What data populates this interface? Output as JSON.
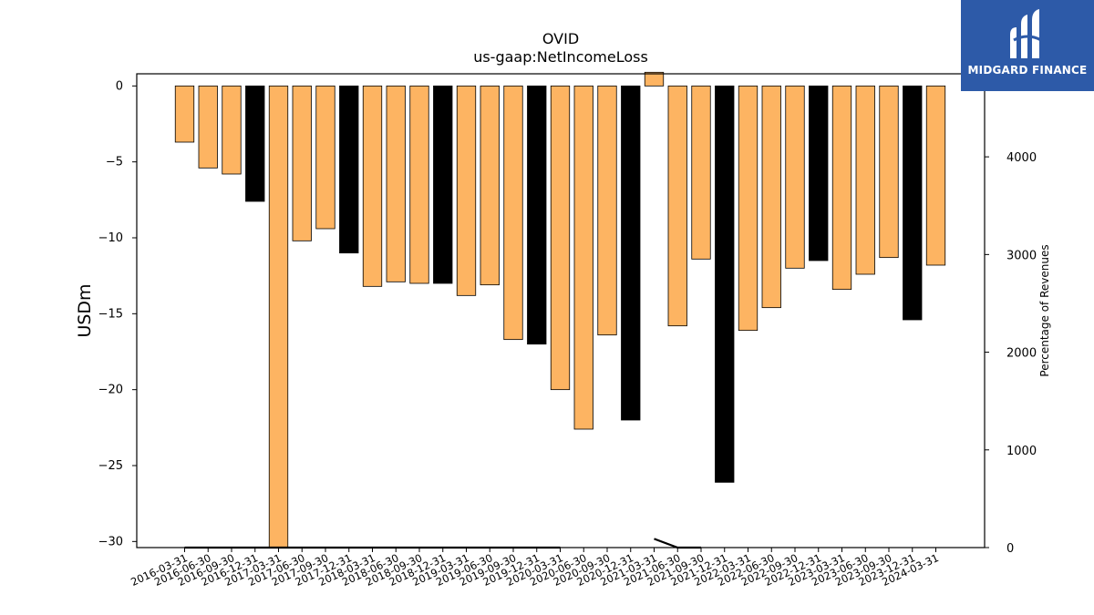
{
  "chart_data": {
    "type": "bar",
    "title": "OVID",
    "subtitle": "us-gaap:NetIncomeLoss",
    "ylabel": "USDm",
    "y2label": "Percentage of Revenues",
    "ylim": [
      -30.4,
      0.8
    ],
    "y2lim": [
      0,
      4850
    ],
    "yticks": [
      0,
      -5,
      -10,
      -15,
      -20,
      -25,
      -30
    ],
    "y2ticks": [
      0,
      1000,
      2000,
      3000,
      4000
    ],
    "categories": [
      "2016-03-31",
      "2016-06-30",
      "2016-09-30",
      "2016-12-31",
      "2017-03-31",
      "2017-06-30",
      "2017-09-30",
      "2017-12-31",
      "2018-03-31",
      "2018-06-30",
      "2018-09-30",
      "2018-12-31",
      "2019-03-31",
      "2019-06-30",
      "2019-09-30",
      "2019-12-31",
      "2020-03-31",
      "2020-06-30",
      "2020-09-30",
      "2020-12-31",
      "2021-03-31",
      "2021-06-30",
      "2021-09-30",
      "2021-12-31",
      "2022-03-31",
      "2022-06-30",
      "2022-09-30",
      "2022-12-31",
      "2023-03-31",
      "2023-06-30",
      "2023-09-30",
      "2023-12-31",
      "2024-03-31"
    ],
    "values": [
      -3.7,
      -5.4,
      -5.8,
      -7.6,
      -30.4,
      -10.2,
      -9.4,
      -11.0,
      -13.2,
      -12.9,
      -13.0,
      -13.0,
      -13.8,
      -13.1,
      -16.7,
      -17.0,
      -20.0,
      -22.6,
      -16.4,
      -22.0,
      0.9,
      -15.8,
      -11.4,
      -26.1,
      -16.1,
      -14.6,
      -12.0,
      -11.5,
      -13.4,
      -12.4,
      -11.3,
      -15.4,
      -11.8
    ],
    "bar_colors": [
      "#fdb462",
      "#fdb462",
      "#fdb462",
      "#000000",
      "#fdb462",
      "#fdb462",
      "#fdb462",
      "#000000",
      "#fdb462",
      "#fdb462",
      "#fdb462",
      "#000000",
      "#fdb462",
      "#fdb462",
      "#fdb462",
      "#000000",
      "#fdb462",
      "#fdb462",
      "#fdb462",
      "#000000",
      "#fdb462",
      "#fdb462",
      "#fdb462",
      "#000000",
      "#fdb462",
      "#fdb462",
      "#fdb462",
      "#000000",
      "#fdb462",
      "#fdb462",
      "#fdb462",
      "#000000",
      "#fdb462"
    ],
    "secondary_line": {
      "axis": "right",
      "color": "#000000",
      "values": [
        0,
        0,
        0,
        0,
        0,
        0,
        0,
        0,
        0,
        0,
        0,
        0,
        0,
        0,
        0,
        0,
        0,
        null,
        null,
        null,
        90,
        0,
        0,
        null,
        null,
        null,
        null,
        null,
        null,
        null,
        null,
        null,
        null
      ]
    },
    "grid": false,
    "legend": "none"
  },
  "logo": {
    "text": "MIDGARD FINANCE",
    "background": "#2d5aa8"
  }
}
